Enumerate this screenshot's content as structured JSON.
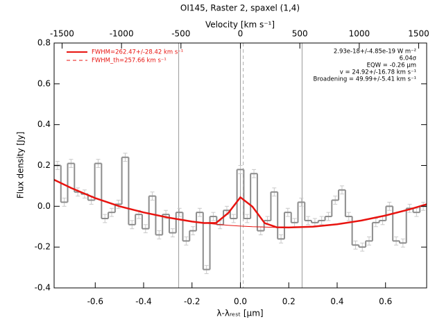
{
  "chart_data": {
    "type": "step",
    "title": "OI145, Raster 2, spaxel (1,4)",
    "xlabel": "λ-λᵣₑₛₜ [μm]",
    "ylabel": "Flux density [Jy]",
    "x2label": "Velocity [km s⁻¹]",
    "xlim": [
      -0.77,
      0.77
    ],
    "ylim": [
      -0.4,
      0.8
    ],
    "x2lim": [
      -1567,
      1567
    ],
    "xticks": [
      -0.6,
      -0.4,
      -0.2,
      {
        "value": 0,
        "label": "0.0"
      },
      0.2,
      0.4,
      0.6
    ],
    "yticks": [
      -0.4,
      -0.2,
      {
        "value": 0,
        "label": "0.0"
      },
      0.2,
      0.4,
      0.6,
      0.8
    ],
    "x2ticks": [
      -1500,
      -1000,
      -500,
      0,
      500,
      1000,
      1500
    ],
    "vlines": [
      -0.255,
      0,
      0.255
    ],
    "dashed_vline": 0.012,
    "series": [
      {
        "name": "spectrum",
        "color": "#8c8c8c",
        "error_color": "#c8c8c8",
        "error": 0.02,
        "x": [
          -0.756,
          -0.728,
          -0.7,
          -0.672,
          -0.644,
          -0.616,
          -0.588,
          -0.56,
          -0.532,
          -0.504,
          -0.476,
          -0.448,
          -0.42,
          -0.392,
          -0.364,
          -0.336,
          -0.308,
          -0.28,
          -0.252,
          -0.224,
          -0.196,
          -0.168,
          -0.14,
          -0.112,
          -0.084,
          -0.056,
          -0.028,
          0,
          0.028,
          0.056,
          0.084,
          0.112,
          0.14,
          0.168,
          0.196,
          0.224,
          0.252,
          0.28,
          0.308,
          0.336,
          0.364,
          0.392,
          0.42,
          0.448,
          0.476,
          0.504,
          0.532,
          0.56,
          0.588,
          0.616,
          0.644,
          0.672,
          0.7,
          0.728,
          0.756
        ],
        "values": [
          0.2,
          0.02,
          0.21,
          0.07,
          0.06,
          0.03,
          0.21,
          -0.06,
          -0.03,
          0.01,
          0.24,
          -0.09,
          -0.04,
          -0.11,
          0.05,
          -0.14,
          -0.04,
          -0.13,
          -0.03,
          -0.17,
          -0.12,
          -0.03,
          -0.31,
          -0.05,
          -0.09,
          -0.02,
          -0.06,
          0.18,
          -0.06,
          0.16,
          -0.12,
          -0.07,
          0.07,
          -0.16,
          -0.03,
          -0.08,
          0.02,
          -0.07,
          -0.08,
          -0.07,
          -0.05,
          0.03,
          0.08,
          -0.05,
          -0.19,
          -0.2,
          -0.17,
          -0.08,
          -0.07,
          0,
          -0.17,
          -0.18,
          -0.01,
          -0.03,
          0
        ]
      },
      {
        "name": "FWHM=262.47+/-28.42 km s⁻¹",
        "color": "#e8130f",
        "dash": false,
        "x": [
          -0.77,
          -0.7,
          -0.6,
          -0.5,
          -0.4,
          -0.3,
          -0.2,
          -0.15,
          -0.1,
          -0.05,
          0,
          0.05,
          0.1,
          0.15,
          0.2,
          0.3,
          0.4,
          0.5,
          0.6,
          0.7,
          0.77
        ],
        "values": [
          0.13,
          0.09,
          0.04,
          0,
          -0.03,
          -0.055,
          -0.075,
          -0.082,
          -0.081,
          -0.033,
          0.044,
          -0.002,
          -0.082,
          -0.103,
          -0.104,
          -0.1,
          -0.088,
          -0.07,
          -0.045,
          -0.015,
          0.01
        ]
      },
      {
        "name": "FWHM_th=257.66 km s⁻¹",
        "color": "#e8130f",
        "dash": true,
        "x": [
          -0.77,
          -0.7,
          -0.6,
          -0.5,
          -0.4,
          -0.3,
          -0.2,
          -0.15,
          -0.1,
          -0.05,
          0,
          0.05,
          0.1,
          0.15,
          0.2,
          0.3,
          0.4,
          0.5,
          0.6,
          0.7,
          0.77
        ],
        "values": [
          0.13,
          0.09,
          0.04,
          0,
          -0.03,
          -0.055,
          -0.075,
          -0.082,
          -0.088,
          -0.093,
          -0.097,
          -0.1,
          -0.102,
          -0.104,
          -0.104,
          -0.1,
          -0.088,
          -0.07,
          -0.045,
          -0.015,
          0.01
        ]
      }
    ],
    "annotations": [
      "2.93e-18+/-4.85e-19 W m⁻²",
      "6.04σ",
      "EQW = -0.26 μm",
      "v = 24.92+/-16.78 km s⁻¹",
      "Broadening = 49.99+/-5.41 km s⁻¹"
    ]
  }
}
